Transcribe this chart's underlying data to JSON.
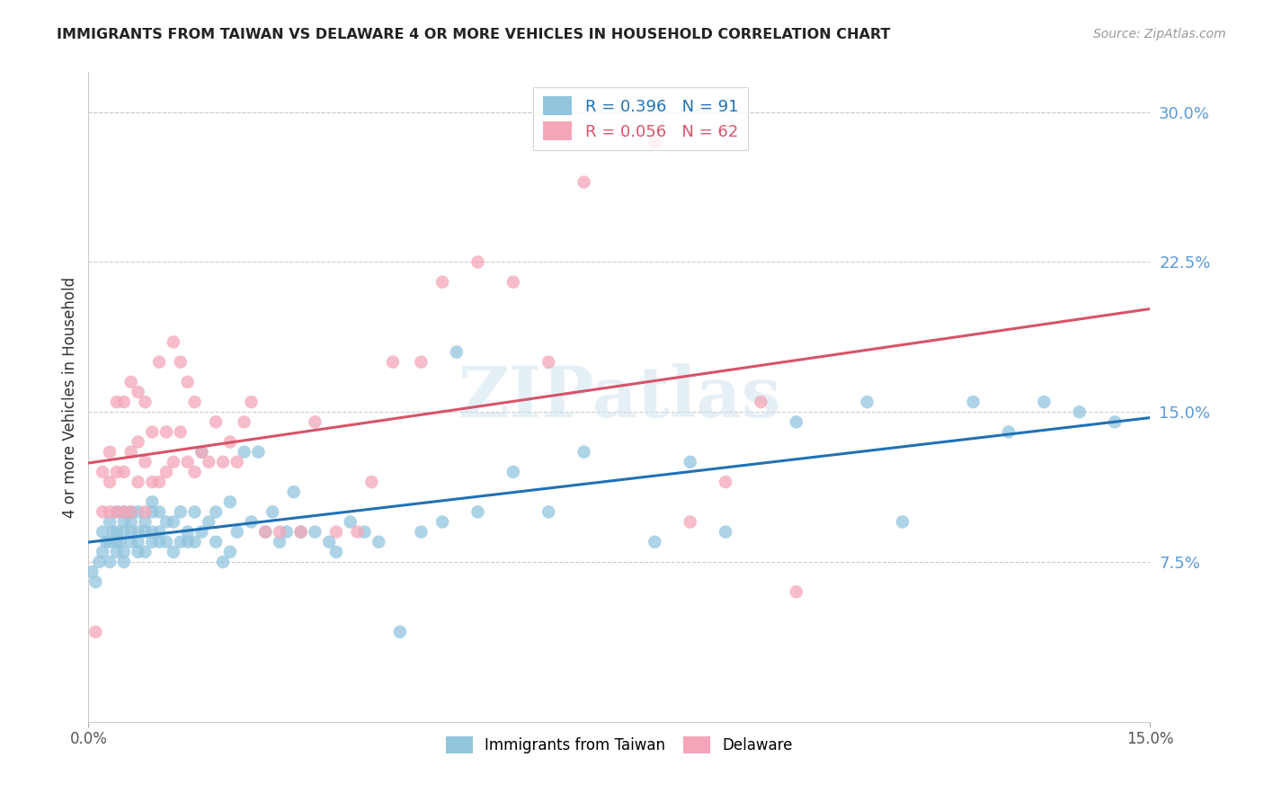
{
  "title": "IMMIGRANTS FROM TAIWAN VS DELAWARE 4 OR MORE VEHICLES IN HOUSEHOLD CORRELATION CHART",
  "source": "Source: ZipAtlas.com",
  "ylabel": "4 or more Vehicles in Household",
  "y_ticks_right": [
    "30.0%",
    "22.5%",
    "15.0%",
    "7.5%"
  ],
  "y_ticks_right_vals": [
    0.3,
    0.225,
    0.15,
    0.075
  ],
  "xlim": [
    0.0,
    0.15
  ],
  "ylim": [
    -0.005,
    0.32
  ],
  "legend_blue_R": "0.396",
  "legend_blue_N": "91",
  "legend_pink_R": "0.056",
  "legend_pink_N": "62",
  "blue_color": "#92c5de",
  "pink_color": "#f4a6b8",
  "line_blue": "#2171b5",
  "line_pink": "#d6546a",
  "watermark": "ZIPatlas",
  "taiwan_x": [
    0.0005,
    0.001,
    0.0015,
    0.002,
    0.002,
    0.0025,
    0.003,
    0.003,
    0.003,
    0.0035,
    0.004,
    0.004,
    0.004,
    0.004,
    0.0045,
    0.005,
    0.005,
    0.005,
    0.005,
    0.005,
    0.006,
    0.006,
    0.006,
    0.006,
    0.007,
    0.007,
    0.007,
    0.007,
    0.008,
    0.008,
    0.008,
    0.009,
    0.009,
    0.009,
    0.009,
    0.01,
    0.01,
    0.01,
    0.011,
    0.011,
    0.012,
    0.012,
    0.013,
    0.013,
    0.014,
    0.014,
    0.015,
    0.015,
    0.016,
    0.016,
    0.017,
    0.018,
    0.018,
    0.019,
    0.02,
    0.02,
    0.021,
    0.022,
    0.023,
    0.024,
    0.025,
    0.026,
    0.027,
    0.028,
    0.029,
    0.03,
    0.032,
    0.034,
    0.035,
    0.037,
    0.039,
    0.041,
    0.044,
    0.047,
    0.05,
    0.052,
    0.055,
    0.06,
    0.065,
    0.07,
    0.08,
    0.085,
    0.09,
    0.1,
    0.11,
    0.115,
    0.125,
    0.13,
    0.135,
    0.14,
    0.145
  ],
  "taiwan_y": [
    0.07,
    0.065,
    0.075,
    0.08,
    0.09,
    0.085,
    0.075,
    0.085,
    0.095,
    0.09,
    0.08,
    0.085,
    0.09,
    0.1,
    0.085,
    0.075,
    0.08,
    0.09,
    0.095,
    0.1,
    0.085,
    0.09,
    0.1,
    0.095,
    0.08,
    0.085,
    0.09,
    0.1,
    0.08,
    0.09,
    0.095,
    0.085,
    0.09,
    0.1,
    0.105,
    0.085,
    0.09,
    0.1,
    0.085,
    0.095,
    0.08,
    0.095,
    0.085,
    0.1,
    0.085,
    0.09,
    0.085,
    0.1,
    0.09,
    0.13,
    0.095,
    0.085,
    0.1,
    0.075,
    0.08,
    0.105,
    0.09,
    0.13,
    0.095,
    0.13,
    0.09,
    0.1,
    0.085,
    0.09,
    0.11,
    0.09,
    0.09,
    0.085,
    0.08,
    0.095,
    0.09,
    0.085,
    0.04,
    0.09,
    0.095,
    0.18,
    0.1,
    0.12,
    0.1,
    0.13,
    0.085,
    0.125,
    0.09,
    0.145,
    0.155,
    0.095,
    0.155,
    0.14,
    0.155,
    0.15,
    0.145
  ],
  "delaware_x": [
    0.001,
    0.002,
    0.002,
    0.003,
    0.003,
    0.003,
    0.004,
    0.004,
    0.004,
    0.005,
    0.005,
    0.005,
    0.006,
    0.006,
    0.006,
    0.007,
    0.007,
    0.007,
    0.008,
    0.008,
    0.008,
    0.009,
    0.009,
    0.01,
    0.01,
    0.011,
    0.011,
    0.012,
    0.012,
    0.013,
    0.013,
    0.014,
    0.014,
    0.015,
    0.015,
    0.016,
    0.017,
    0.018,
    0.019,
    0.02,
    0.021,
    0.022,
    0.023,
    0.025,
    0.027,
    0.03,
    0.032,
    0.035,
    0.038,
    0.04,
    0.043,
    0.047,
    0.05,
    0.055,
    0.06,
    0.065,
    0.07,
    0.08,
    0.085,
    0.09,
    0.095,
    0.1
  ],
  "delaware_y": [
    0.04,
    0.1,
    0.12,
    0.1,
    0.115,
    0.13,
    0.1,
    0.12,
    0.155,
    0.1,
    0.12,
    0.155,
    0.1,
    0.13,
    0.165,
    0.115,
    0.135,
    0.16,
    0.1,
    0.125,
    0.155,
    0.115,
    0.14,
    0.115,
    0.175,
    0.12,
    0.14,
    0.125,
    0.185,
    0.14,
    0.175,
    0.125,
    0.165,
    0.12,
    0.155,
    0.13,
    0.125,
    0.145,
    0.125,
    0.135,
    0.125,
    0.145,
    0.155,
    0.09,
    0.09,
    0.09,
    0.145,
    0.09,
    0.09,
    0.115,
    0.175,
    0.175,
    0.215,
    0.225,
    0.215,
    0.175,
    0.265,
    0.285,
    0.095,
    0.115,
    0.155,
    0.06
  ]
}
